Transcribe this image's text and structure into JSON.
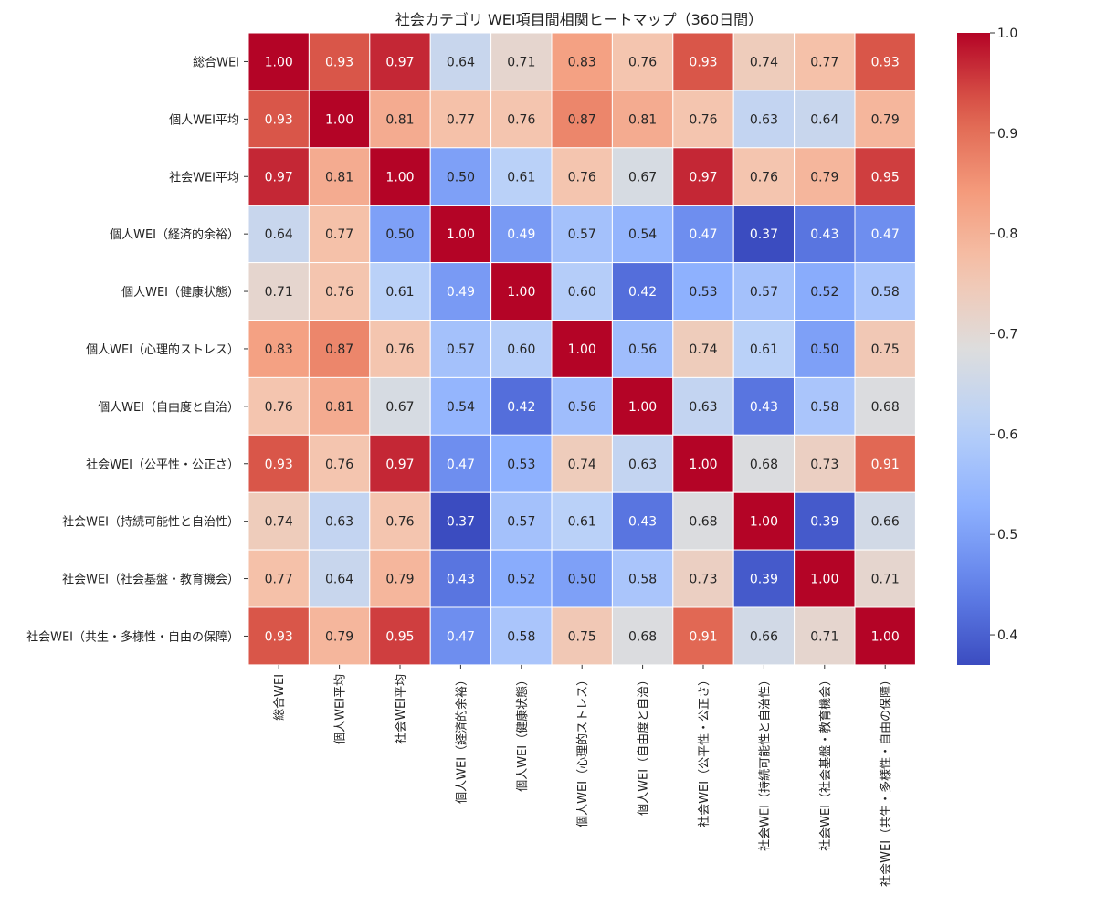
{
  "chart_data": {
    "type": "heatmap",
    "title": "社会カテゴリ WEI項目間相関ヒートマップ（360日間）",
    "labels": [
      "総合WEI",
      "個人WEI平均",
      "社会WEI平均",
      "個人WEI（経済的余裕）",
      "個人WEI（健康状態）",
      "個人WEI（心理的ストレス）",
      "個人WEI（自由度と自治）",
      "社会WEI（公平性・公正さ）",
      "社会WEI（持続可能性と自治性）",
      "社会WEI（社会基盤・教育機会）",
      "社会WEI（共生・多様性・自由の保障）"
    ],
    "matrix": [
      [
        1.0,
        0.93,
        0.97,
        0.64,
        0.71,
        0.83,
        0.76,
        0.93,
        0.74,
        0.77,
        0.93
      ],
      [
        0.93,
        1.0,
        0.81,
        0.77,
        0.76,
        0.87,
        0.81,
        0.76,
        0.63,
        0.64,
        0.79
      ],
      [
        0.97,
        0.81,
        1.0,
        0.5,
        0.61,
        0.76,
        0.67,
        0.97,
        0.76,
        0.79,
        0.95
      ],
      [
        0.64,
        0.77,
        0.5,
        1.0,
        0.49,
        0.57,
        0.54,
        0.47,
        0.37,
        0.43,
        0.47
      ],
      [
        0.71,
        0.76,
        0.61,
        0.49,
        1.0,
        0.6,
        0.42,
        0.53,
        0.57,
        0.52,
        0.58
      ],
      [
        0.83,
        0.87,
        0.76,
        0.57,
        0.6,
        1.0,
        0.56,
        0.74,
        0.61,
        0.5,
        0.75
      ],
      [
        0.76,
        0.81,
        0.67,
        0.54,
        0.42,
        0.56,
        1.0,
        0.63,
        0.43,
        0.58,
        0.68
      ],
      [
        0.93,
        0.76,
        0.97,
        0.47,
        0.53,
        0.74,
        0.63,
        1.0,
        0.68,
        0.73,
        0.91
      ],
      [
        0.74,
        0.63,
        0.76,
        0.37,
        0.57,
        0.61,
        0.43,
        0.68,
        1.0,
        0.39,
        0.66
      ],
      [
        0.77,
        0.64,
        0.79,
        0.43,
        0.52,
        0.5,
        0.58,
        0.73,
        0.39,
        1.0,
        0.71
      ],
      [
        0.93,
        0.79,
        0.95,
        0.47,
        0.58,
        0.75,
        0.68,
        0.91,
        0.66,
        0.71,
        1.0
      ]
    ],
    "colormap": "coolwarm",
    "vmin": 0.37,
    "vmax": 1.0,
    "colorbar_ticks": [
      0.4,
      0.5,
      0.6,
      0.7,
      0.8,
      0.9,
      1.0
    ],
    "colorbar_tick_labels": [
      "0.4",
      "0.5",
      "0.6",
      "0.7",
      "0.8",
      "0.9",
      "1.0"
    ],
    "annotation_format": "0.00"
  }
}
